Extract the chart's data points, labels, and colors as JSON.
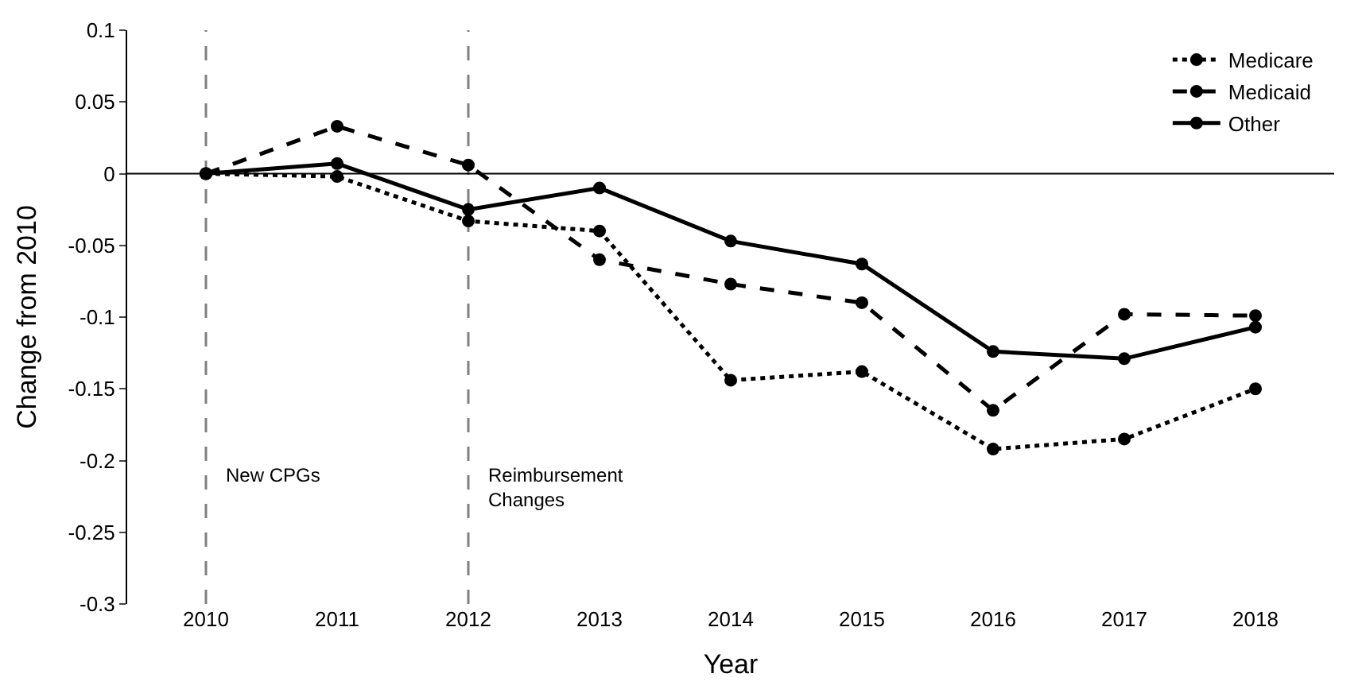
{
  "chart_data": {
    "type": "line",
    "xlabel": "Year",
    "ylabel": "Change from 2010",
    "x": [
      2010,
      2011,
      2012,
      2013,
      2014,
      2015,
      2016,
      2017,
      2018
    ],
    "xlim": [
      2009.4,
      2018.6
    ],
    "xticks": [
      2010,
      2011,
      2012,
      2013,
      2014,
      2015,
      2016,
      2017,
      2018
    ],
    "ylim": [
      -0.3,
      0.1
    ],
    "yticks": [
      0.1,
      0.05,
      0,
      -0.05,
      -0.1,
      -0.15,
      -0.2,
      -0.25,
      -0.3
    ],
    "series": [
      {
        "name": "Medicare",
        "color": "#000000",
        "line_style": "dotted",
        "values": [
          0,
          -0.002,
          -0.033,
          -0.04,
          -0.144,
          -0.138,
          -0.192,
          -0.185,
          -0.15
        ]
      },
      {
        "name": "Medicaid",
        "color": "#000000",
        "line_style": "dashed",
        "values": [
          0,
          0.033,
          0.006,
          -0.06,
          -0.077,
          -0.09,
          -0.165,
          -0.098,
          -0.099
        ]
      },
      {
        "name": "Other",
        "color": "#000000",
        "line_style": "solid",
        "values": [
          0,
          0.007,
          -0.025,
          -0.01,
          -0.047,
          -0.063,
          -0.124,
          -0.129,
          -0.107
        ]
      }
    ],
    "ref_lines": [
      {
        "axis": "x",
        "value": 2010,
        "label": "New CPGs",
        "color": "#808080",
        "line_style": "dashed"
      },
      {
        "axis": "x",
        "value": 2012,
        "label": "Reimbursement Changes",
        "color": "#808080",
        "line_style": "dashed"
      },
      {
        "axis": "y",
        "value": 0,
        "color": "#000000",
        "line_style": "solid"
      }
    ],
    "marker": "circle",
    "legend": "top right",
    "grid": false
  }
}
